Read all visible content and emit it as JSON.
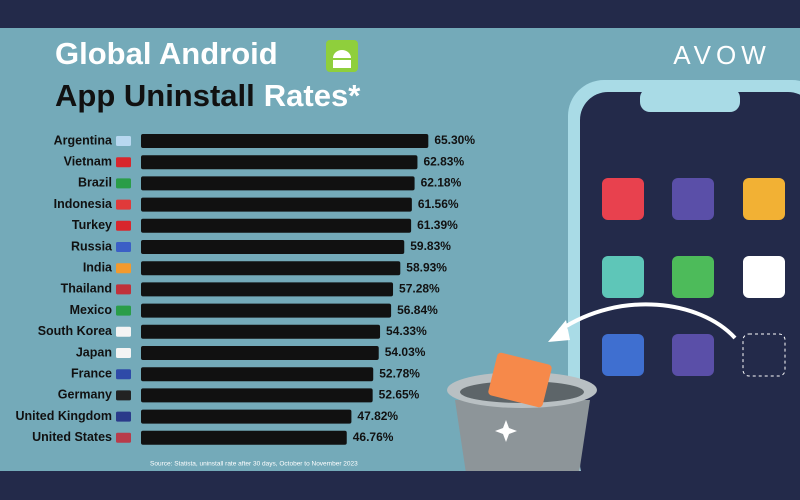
{
  "logo": "AVOW",
  "chart_data": {
    "type": "bar",
    "horizontal": true,
    "title": [
      "Global Android",
      "App Uninstall",
      "Rates*"
    ],
    "categories": [
      "Argentina",
      "Vietnam",
      "Brazil",
      "Indonesia",
      "Turkey",
      "Russia",
      "India",
      "Thailand",
      "Mexico",
      "South Korea",
      "Japan",
      "France",
      "Germany",
      "United Kingdom",
      "United States"
    ],
    "values": [
      65.3,
      62.83,
      62.18,
      61.56,
      61.39,
      59.83,
      58.93,
      57.28,
      56.84,
      54.33,
      54.03,
      52.78,
      52.65,
      47.82,
      46.76
    ],
    "value_labels": [
      "65.30%",
      "62.83%",
      "62.18%",
      "61.56%",
      "61.39%",
      "59.83%",
      "58.93%",
      "57.28%",
      "56.84%",
      "54.33%",
      "54.03%",
      "52.78%",
      "52.65%",
      "47.82%",
      "46.76%"
    ],
    "color": "#111111",
    "source": "Source: Statista, uninstall rate after 30 days, October to November 2023"
  }
}
